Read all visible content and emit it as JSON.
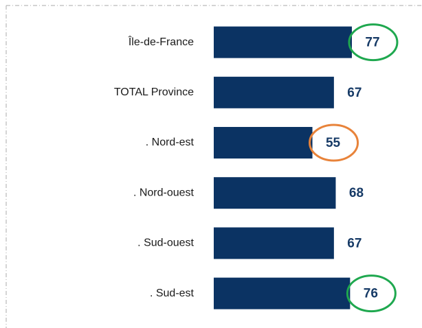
{
  "chart_data": {
    "type": "bar",
    "orientation": "horizontal",
    "categories": [
      "Île-de-France",
      "TOTAL Province",
      ". Nord-est",
      ". Nord-ouest",
      ". Sud-ouest",
      ". Sud-est"
    ],
    "values": [
      77,
      67,
      55,
      68,
      67,
      76
    ],
    "color": "#0b3363",
    "highlight_colors": [
      "#1fa84f",
      null,
      "#e8833a",
      null,
      null,
      "#1fa84f"
    ]
  }
}
